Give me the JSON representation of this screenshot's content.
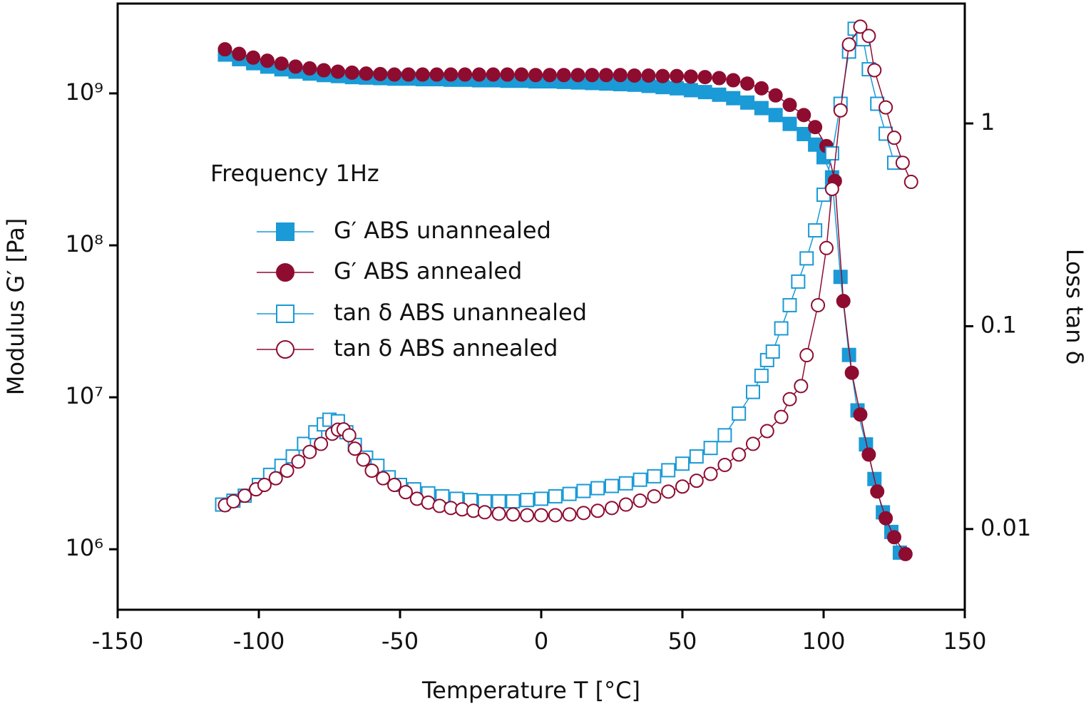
{
  "chart_data": {
    "type": "line",
    "xlabel": "Temperature T [°C]",
    "ylabel": "Modulus G′ [Pa]",
    "y2label": "Loss tan δ",
    "annotation": "Frequency 1Hz",
    "xlim": [
      -150,
      150
    ],
    "xticks": [
      -150,
      -100,
      -50,
      0,
      50,
      100,
      150
    ],
    "ylim": [
      400000,
      3900000000
    ],
    "yscale": "log",
    "yticks": [
      {
        "value": 1000000,
        "label": "10⁶"
      },
      {
        "value": 10000000,
        "label": "10⁷"
      },
      {
        "value": 100000000,
        "label": "10⁸"
      },
      {
        "value": 1000000000,
        "label": "10⁹"
      }
    ],
    "y2lim": [
      0.004,
      3.9
    ],
    "y2scale": "log",
    "y2ticks": [
      0.01,
      0.1,
      1
    ],
    "legend": "left",
    "series": [
      {
        "name": "G′ ABS unannealed",
        "color": "#1a9ad6",
        "marker": "square",
        "filled": true,
        "x": [
          -112,
          -107,
          -102,
          -97,
          -92,
          -87,
          -82,
          -77,
          -72,
          -67,
          -62,
          -57,
          -52,
          -47,
          -42,
          -37,
          -32,
          -27,
          -22,
          -17,
          -12,
          -7,
          -2,
          3,
          8,
          13,
          18,
          23,
          28,
          33,
          38,
          43,
          48,
          53,
          58,
          63,
          68,
          73,
          78,
          83,
          88,
          93,
          97,
          100,
          103,
          106,
          109,
          112,
          115,
          118,
          121,
          124,
          127
        ],
        "values": [
          1800000000.0,
          1680000000.0,
          1580000000.0,
          1500000000.0,
          1440000000.0,
          1390000000.0,
          1350000000.0,
          1320000000.0,
          1300000000.0,
          1280000000.0,
          1270000000.0,
          1260000000.0,
          1250000000.0,
          1250000000.0,
          1240000000.0,
          1240000000.0,
          1230000000.0,
          1230000000.0,
          1220000000.0,
          1220000000.0,
          1210000000.0,
          1210000000.0,
          1200000000.0,
          1200000000.0,
          1190000000.0,
          1180000000.0,
          1170000000.0,
          1160000000.0,
          1150000000.0,
          1140000000.0,
          1120000000.0,
          1100000000.0,
          1080000000.0,
          1050000000.0,
          1020000000.0,
          980000000.0,
          930000000.0,
          870000000.0,
          800000000.0,
          720000000.0,
          630000000.0,
          540000000.0,
          460000000.0,
          380000000.0,
          280000000.0,
          62000000.0,
          19000000.0,
          8200000.0,
          4900000.0,
          2900000.0,
          1750000.0,
          1300000.0,
          950000.0
        ]
      },
      {
        "name": "G′ ABS annealed",
        "color": "#8e0c30",
        "marker": "circle",
        "filled": true,
        "x": [
          -112,
          -107,
          -102,
          -97,
          -92,
          -87,
          -82,
          -77,
          -72,
          -67,
          -62,
          -57,
          -52,
          -47,
          -42,
          -37,
          -32,
          -27,
          -22,
          -17,
          -12,
          -7,
          -2,
          3,
          8,
          13,
          18,
          23,
          28,
          33,
          38,
          43,
          48,
          53,
          58,
          63,
          68,
          73,
          78,
          83,
          88,
          93,
          97,
          101,
          104,
          107,
          110,
          113,
          116,
          119,
          122,
          125,
          129
        ],
        "values": [
          1950000000.0,
          1820000000.0,
          1720000000.0,
          1640000000.0,
          1570000000.0,
          1500000000.0,
          1460000000.0,
          1420000000.0,
          1390000000.0,
          1370000000.0,
          1350000000.0,
          1340000000.0,
          1330000000.0,
          1330000000.0,
          1330000000.0,
          1330000000.0,
          1330000000.0,
          1330000000.0,
          1330000000.0,
          1330000000.0,
          1330000000.0,
          1330000000.0,
          1320000000.0,
          1320000000.0,
          1320000000.0,
          1320000000.0,
          1320000000.0,
          1320000000.0,
          1320000000.0,
          1310000000.0,
          1310000000.0,
          1300000000.0,
          1300000000.0,
          1290000000.0,
          1280000000.0,
          1260000000.0,
          1220000000.0,
          1160000000.0,
          1080000000.0,
          970000000.0,
          840000000.0,
          720000000.0,
          600000000.0,
          450000000.0,
          265000000.0,
          43000000.0,
          14500000.0,
          7700000.0,
          4200000.0,
          2400000.0,
          1600000.0,
          1200000.0,
          930000.0
        ]
      },
      {
        "name": "tan δ ABS unannealed",
        "color": "#1a9ad6",
        "marker": "square",
        "filled": false,
        "axis": "y2",
        "x": [
          -113,
          -109,
          -105,
          -100,
          -96,
          -92,
          -88,
          -84,
          -80,
          -77,
          -75,
          -72,
          -69,
          -66,
          -62,
          -58,
          -54,
          -50,
          -45,
          -40,
          -35,
          -30,
          -25,
          -20,
          -15,
          -10,
          -5,
          0,
          5,
          10,
          15,
          20,
          25,
          30,
          35,
          40,
          45,
          50,
          55,
          60,
          65,
          70,
          75,
          78,
          80,
          82,
          85,
          88,
          91,
          94,
          97,
          100,
          103,
          106,
          109,
          111,
          114,
          116,
          119,
          122,
          125
        ],
        "values": [
          0.0132,
          0.0138,
          0.0146,
          0.0165,
          0.0185,
          0.0205,
          0.0228,
          0.0263,
          0.03,
          0.0328,
          0.0346,
          0.034,
          0.03,
          0.026,
          0.0225,
          0.0205,
          0.018,
          0.0165,
          0.0157,
          0.015,
          0.0145,
          0.0141,
          0.0139,
          0.0137,
          0.0137,
          0.0137,
          0.0139,
          0.0141,
          0.0145,
          0.0149,
          0.0154,
          0.0159,
          0.0163,
          0.0168,
          0.0175,
          0.0182,
          0.0195,
          0.021,
          0.0228,
          0.0251,
          0.029,
          0.0371,
          0.0474,
          0.057,
          0.0681,
          0.075,
          0.0976,
          0.127,
          0.166,
          0.216,
          0.297,
          0.445,
          0.712,
          1.25,
          2.26,
          2.93,
          2.6,
          1.85,
          1.25,
          0.89,
          0.64
        ]
      },
      {
        "name": "tan δ ABS annealed",
        "color": "#8e0c30",
        "marker": "circle",
        "filled": false,
        "axis": "y2",
        "x": [
          -112,
          -109,
          -105,
          -101,
          -98,
          -94,
          -90,
          -86,
          -82,
          -78,
          -74,
          -72,
          -70,
          -68,
          -66,
          -63,
          -60,
          -56,
          -52,
          -48,
          -44,
          -40,
          -36,
          -32,
          -28,
          -24,
          -20,
          -15,
          -10,
          -5,
          0,
          5,
          10,
          15,
          20,
          25,
          30,
          35,
          40,
          45,
          50,
          55,
          60,
          65,
          70,
          75,
          80,
          85,
          88,
          92,
          94,
          98,
          101,
          103,
          106,
          109,
          113,
          116,
          118,
          122,
          125,
          128,
          131
        ],
        "values": [
          0.0131,
          0.0137,
          0.0146,
          0.0157,
          0.0165,
          0.0178,
          0.0194,
          0.0215,
          0.024,
          0.0263,
          0.0295,
          0.0309,
          0.031,
          0.029,
          0.0249,
          0.022,
          0.0194,
          0.0178,
          0.0165,
          0.0152,
          0.0141,
          0.0135,
          0.013,
          0.0127,
          0.0125,
          0.0123,
          0.0121,
          0.0119,
          0.0118,
          0.0117,
          0.0117,
          0.0117,
          0.0118,
          0.012,
          0.0123,
          0.0127,
          0.0132,
          0.0138,
          0.0145,
          0.0153,
          0.0162,
          0.0173,
          0.0187,
          0.0207,
          0.0233,
          0.0263,
          0.0304,
          0.0357,
          0.0437,
          0.0507,
          0.072,
          0.127,
          0.243,
          0.475,
          1.16,
          2.45,
          3.0,
          2.7,
          1.83,
          1.2,
          0.85,
          0.64,
          0.515
        ]
      }
    ]
  }
}
